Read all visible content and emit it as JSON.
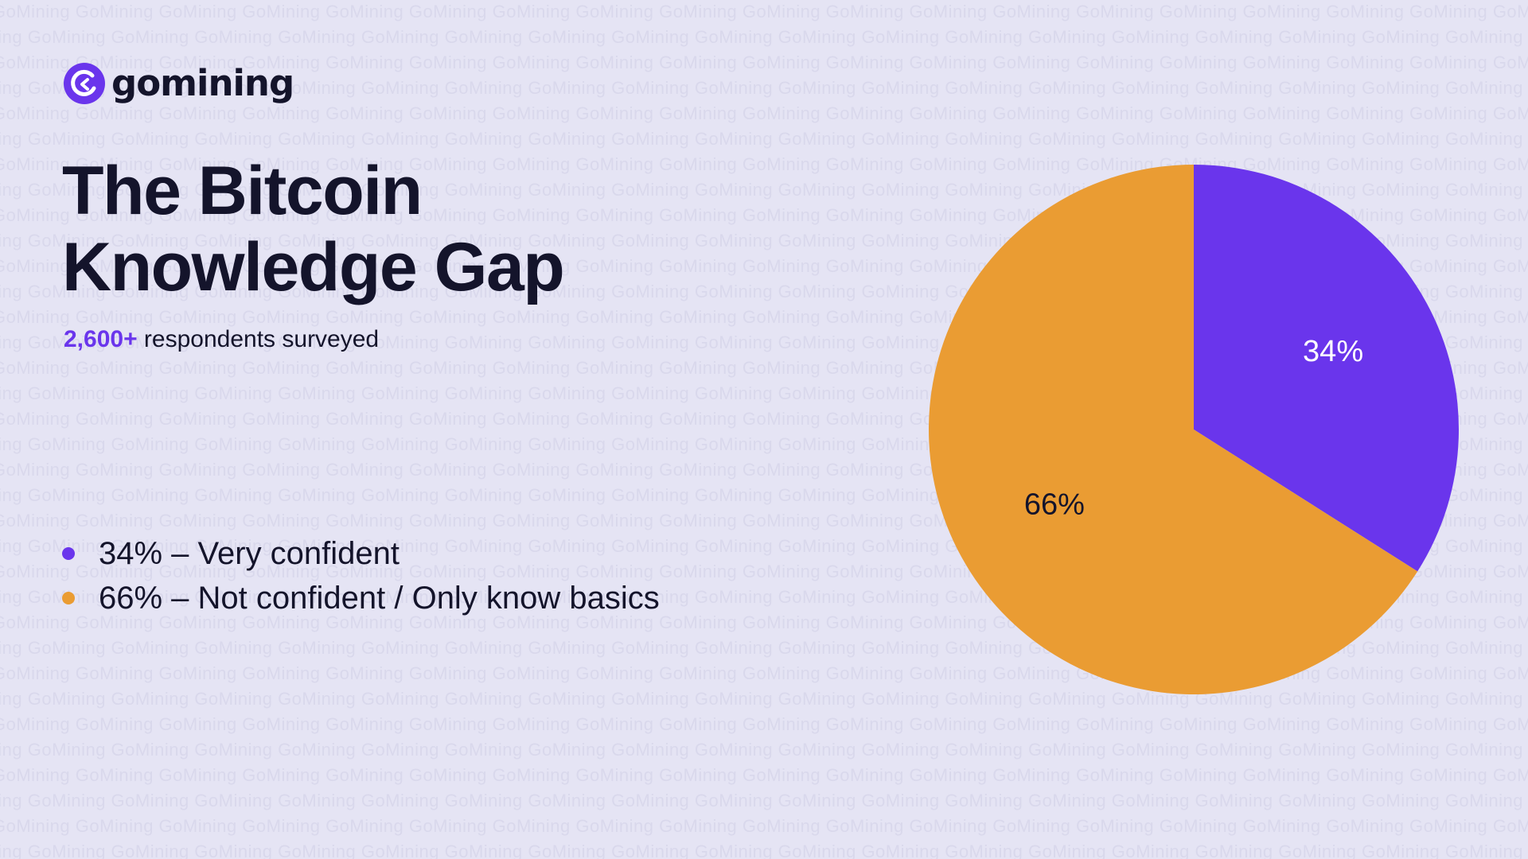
{
  "brand": {
    "name": "gomining",
    "watermark_text": "GoMining",
    "colors": {
      "purple": "#6a35ec",
      "orange": "#ea9c33",
      "background": "#e5e4f4",
      "text": "#14142b"
    }
  },
  "headline": {
    "line1": "The Bitcoin",
    "line2": "Knowledge Gap"
  },
  "subtitle": {
    "highlight": "2,600+",
    "rest": " respondents surveyed"
  },
  "legend": [
    {
      "text": "34% – Very confident",
      "color": "#6a35ec"
    },
    {
      "text": "66% – Not confident / Only know basics",
      "color": "#ea9c33"
    }
  ],
  "chart_data": {
    "type": "pie",
    "slices": [
      {
        "label": "Very confident",
        "value": 34,
        "value_label": "34%",
        "color": "#6a35ec",
        "label_color": "#ffffff"
      },
      {
        "label": "Not confident / Only know basics",
        "value": 66,
        "value_label": "66%",
        "color": "#ea9c33",
        "label_color": "#14142b"
      }
    ],
    "start": "12 o'clock",
    "direction": "clockwise",
    "legend_position": "left"
  }
}
